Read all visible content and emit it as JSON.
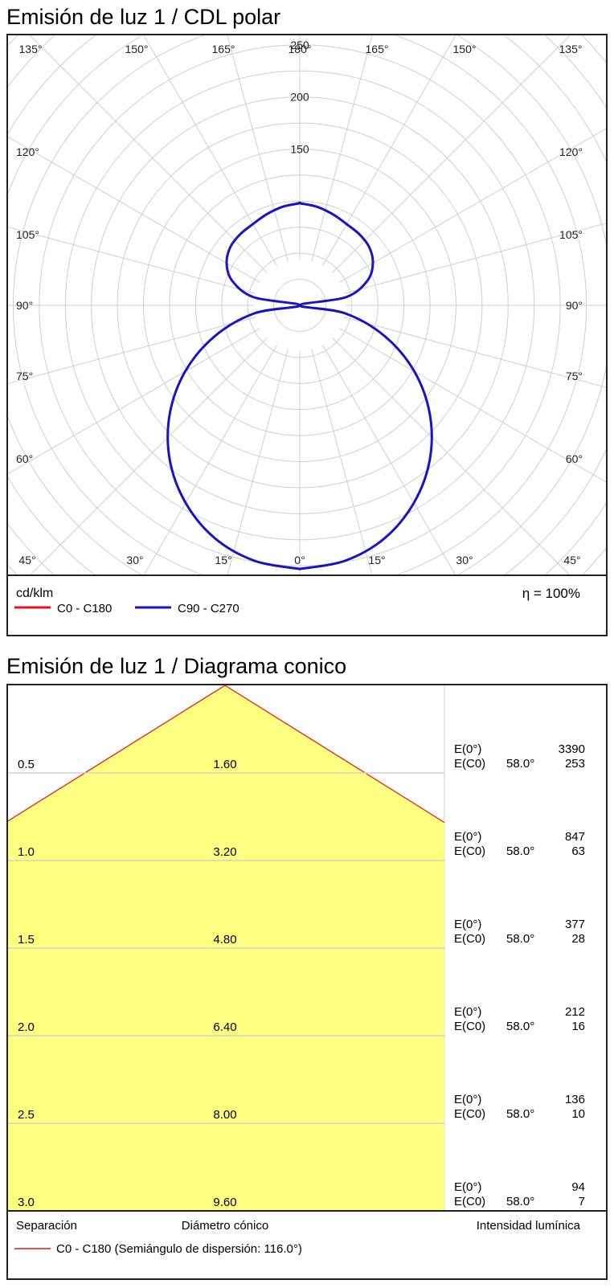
{
  "chart_data": [
    {
      "type": "polar",
      "title": "Emisión de luz 1 / CDL polar",
      "unit": "cd/klm",
      "efficiency": "η = 100%",
      "radial_ticks": [
        "150",
        "200",
        "250"
      ],
      "radial_max": 300,
      "angle_labels": {
        "top": [
          "135°",
          "150°",
          "165°",
          "180°",
          "165°",
          "150°",
          "135°"
        ],
        "left": [
          "120°",
          "105°",
          "90°",
          "75°",
          "60°"
        ],
        "right": [
          "120°",
          "105°",
          "90°",
          "75°",
          "60°"
        ],
        "bottom": [
          "45°",
          "30°",
          "15°",
          "0°",
          "15°",
          "30°",
          "45°"
        ]
      },
      "legend": [
        {
          "label": "C0 - C180",
          "color": "#e8141b"
        },
        {
          "label": "C90 - C270",
          "color": "#1a12c8"
        }
      ],
      "series": [
        {
          "name": "C90 - C270",
          "color": "#1a12c8",
          "gamma": [
            0,
            10,
            20,
            30,
            40,
            50,
            60,
            70,
            80,
            90,
            100,
            110,
            120,
            130,
            140,
            150,
            160,
            170,
            180
          ],
          "intensity": [
            253,
            249,
            238,
            219,
            194,
            163,
            127,
            87,
            44,
            0,
            45,
            69,
            81,
            87,
            89,
            90,
            93,
            96,
            98
          ]
        }
      ]
    },
    {
      "type": "table",
      "title": "Emisión de luz 1 / Diagrama conico",
      "columns": [
        "Separación",
        "Diámetro cónico",
        "Intensidad lumínica"
      ],
      "legend": "C0 - C180 (Semiángulo de dispersión: 116.0°)",
      "legend_color": "#e8141b",
      "fill_color": "#ffff80",
      "rows": [
        {
          "separation": "0.5",
          "diameter": "1.60",
          "e0_label": "E(0°)",
          "ec0_label": "E(C0)",
          "angle": "58.0°",
          "e0": "3390",
          "ec0": "253"
        },
        {
          "separation": "1.0",
          "diameter": "3.20",
          "e0_label": "E(0°)",
          "ec0_label": "E(C0)",
          "angle": "58.0°",
          "e0": "847",
          "ec0": "63"
        },
        {
          "separation": "1.5",
          "diameter": "4.80",
          "e0_label": "E(0°)",
          "ec0_label": "E(C0)",
          "angle": "58.0°",
          "e0": "377",
          "ec0": "28"
        },
        {
          "separation": "2.0",
          "diameter": "6.40",
          "e0_label": "E(0°)",
          "ec0_label": "E(C0)",
          "angle": "58.0°",
          "e0": "212",
          "ec0": "16"
        },
        {
          "separation": "2.5",
          "diameter": "8.00",
          "e0_label": "E(0°)",
          "ec0_label": "E(C0)",
          "angle": "58.0°",
          "e0": "136",
          "ec0": "10"
        },
        {
          "separation": "3.0",
          "diameter": "9.60",
          "e0_label": "E(0°)",
          "ec0_label": "E(C0)",
          "angle": "58.0°",
          "e0": "94",
          "ec0": "7"
        }
      ]
    }
  ]
}
